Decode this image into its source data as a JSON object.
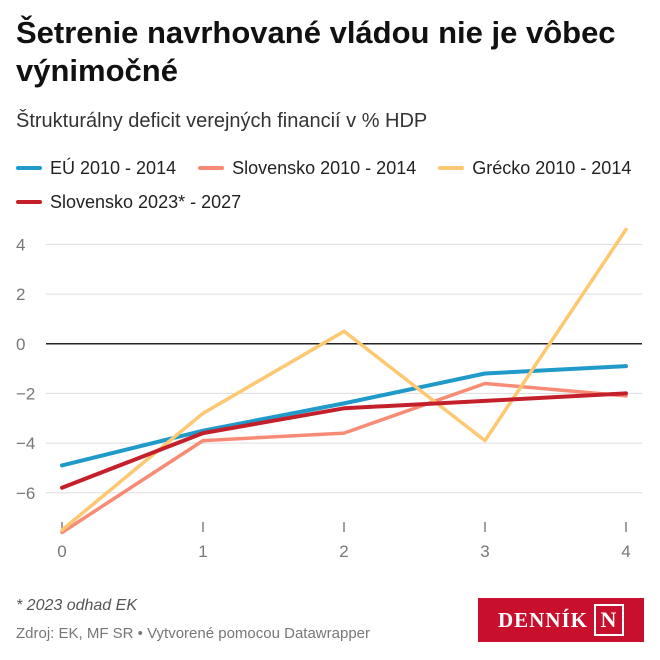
{
  "title": "Šetrenie navrhované vládou nie je vôbec výnimočné",
  "subtitle": "Štrukturálny deficit verejných financií v % HDP",
  "colors": {
    "eu": "#1f9ac9",
    "sk2010": "#f88b76",
    "gr": "#fdc871",
    "sk2023": "#c4202c",
    "grid": "#dddddd",
    "zero": "#222222"
  },
  "chart_data": {
    "type": "line",
    "x": [
      0,
      1,
      2,
      3,
      4
    ],
    "xlim": [
      0,
      4
    ],
    "ylim": [
      -7.5,
      4.5
    ],
    "yticks": [
      4,
      2,
      0,
      -2,
      -4,
      -6
    ],
    "ytick_labels": [
      "4",
      "2",
      "0",
      "−2",
      "−4",
      "−6"
    ],
    "xtick_labels": [
      "0",
      "1",
      "2",
      "3",
      "4"
    ],
    "grid": true,
    "legend_position": "top",
    "series": [
      {
        "name": "EÚ 2010 - 2014",
        "color_key": "eu",
        "values": [
          -4.9,
          -3.5,
          -2.4,
          -1.2,
          -0.9
        ]
      },
      {
        "name": "Slovensko 2010 - 2014",
        "color_key": "sk2010",
        "values": [
          -7.6,
          -3.9,
          -3.6,
          -1.6,
          -2.1
        ]
      },
      {
        "name": "Grécko 2010 - 2014",
        "color_key": "gr",
        "values": [
          -7.5,
          -2.8,
          0.5,
          -3.9,
          4.6
        ]
      },
      {
        "name": "Slovensko 2023* - 2027",
        "color_key": "sk2023",
        "values": [
          -5.8,
          -3.6,
          -2.6,
          -2.3,
          -2.0
        ]
      }
    ]
  },
  "footnote": "* 2023 odhad EK",
  "source": "Zdroj: EK, MF SR • Vytvorené pomocou Datawrapper",
  "logo": {
    "text": "DENNÍK",
    "mark": "N"
  }
}
